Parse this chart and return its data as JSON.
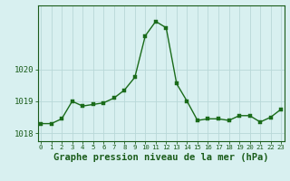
{
  "x": [
    0,
    1,
    2,
    3,
    4,
    5,
    6,
    7,
    8,
    9,
    10,
    11,
    12,
    13,
    14,
    15,
    16,
    17,
    18,
    19,
    20,
    21,
    22,
    23
  ],
  "y": [
    1018.3,
    1018.3,
    1018.45,
    1019.0,
    1018.85,
    1018.9,
    1018.95,
    1019.1,
    1019.35,
    1019.75,
    1021.05,
    1021.5,
    1021.3,
    1019.55,
    1019.0,
    1018.4,
    1018.45,
    1018.45,
    1018.4,
    1018.55,
    1018.55,
    1018.35,
    1018.5,
    1018.75
  ],
  "line_color": "#1a6b1a",
  "marker_color": "#1a6b1a",
  "bg_color": "#d8f0f0",
  "grid_color": "#b8d8d8",
  "tick_label_color": "#1a5c1a",
  "xlabel": "Graphe pression niveau de la mer (hPa)",
  "ylim_min": 1017.75,
  "ylim_max": 1022.0,
  "yticks": [
    1018,
    1019,
    1020
  ],
  "xticks": [
    0,
    1,
    2,
    3,
    4,
    5,
    6,
    7,
    8,
    9,
    10,
    11,
    12,
    13,
    14,
    15,
    16,
    17,
    18,
    19,
    20,
    21,
    22,
    23
  ],
  "xlabel_fontsize": 7.5,
  "ytick_fontsize": 6.5,
  "xtick_fontsize": 5.2,
  "line_width": 1.0,
  "marker_size": 2.5
}
